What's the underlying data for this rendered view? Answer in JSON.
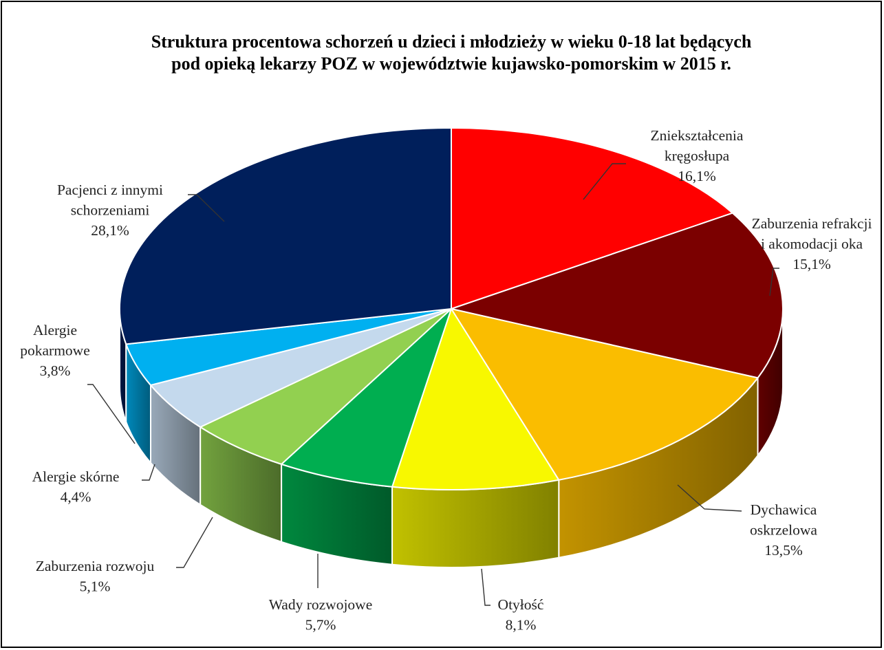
{
  "chart_data": {
    "type": "pie",
    "style": "3d-exploded-none",
    "title_lines": [
      "Struktura procentowa schorzeń u dzieci i młodzieży w wieku 0-18 lat będących",
      "pod opieką lekarzy POZ w województwie kujawsko-pomorskim w 2015 r."
    ],
    "slices": [
      {
        "label_lines": [
          "Zniekształcenia",
          "kręgosłupa"
        ],
        "value_label": "16,1%",
        "value": 16.1,
        "color": "#ff0000"
      },
      {
        "label_lines": [
          "Zaburzenia refrakcji",
          "i akomodacji oka"
        ],
        "value_label": "15,1%",
        "value": 15.1,
        "color": "#7b0000"
      },
      {
        "label_lines": [
          "Dychawica",
          "oskrzelowa"
        ],
        "value_label": "13,5%",
        "value": 13.5,
        "color": "#fabd00"
      },
      {
        "label_lines": [
          "Otyłość"
        ],
        "value_label": "8,1%",
        "value": 8.1,
        "color": "#f8f800"
      },
      {
        "label_lines": [
          "Wady rozwojowe"
        ],
        "value_label": "5,7%",
        "value": 5.7,
        "color": "#00ae50"
      },
      {
        "label_lines": [
          "Zaburzenia rozwoju"
        ],
        "value_label": "5,1%",
        "value": 5.1,
        "color": "#92d050"
      },
      {
        "label_lines": [
          "Alergie skórne"
        ],
        "value_label": "4,4%",
        "value": 4.4,
        "color": "#c4d9ed"
      },
      {
        "label_lines": [
          "Alergie",
          "pokarmowe"
        ],
        "value_label": "3,8%",
        "value": 3.8,
        "color": "#00b0f0"
      },
      {
        "label_lines": [
          "Pacjenci z innymi",
          "schorzeniami"
        ],
        "value_label": "28,1%",
        "value": 28.1,
        "color": "#001f5b"
      }
    ]
  }
}
